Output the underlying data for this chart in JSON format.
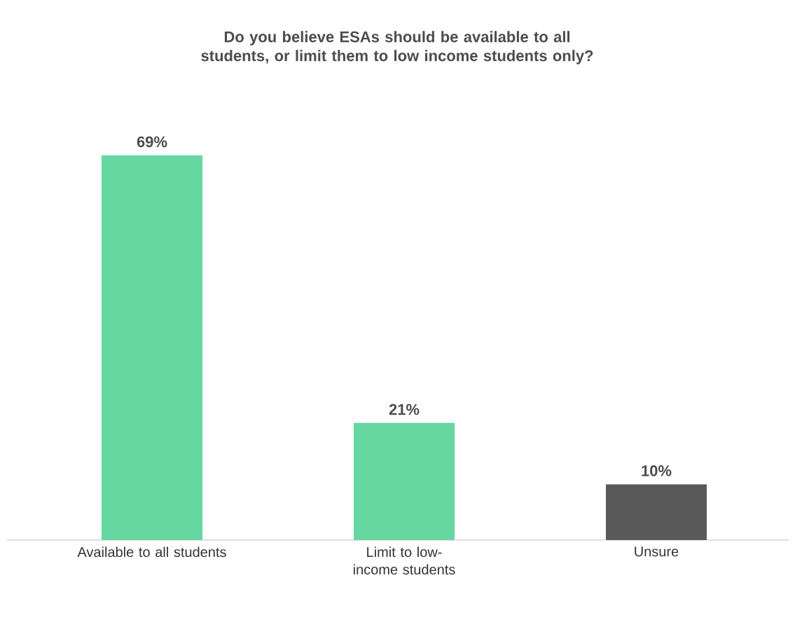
{
  "chart_data": {
    "type": "bar",
    "title": "Do you believe ESAs should be available to all students, or limit them to low income students only?",
    "categories": [
      "Available to all students",
      "Limit to low-income students",
      "Unsure"
    ],
    "values": [
      69,
      21,
      10
    ],
    "colors": [
      "#66d7a0",
      "#66d7a0",
      "#595959"
    ],
    "value_labels": [
      "69%",
      "21%",
      "10%"
    ]
  }
}
